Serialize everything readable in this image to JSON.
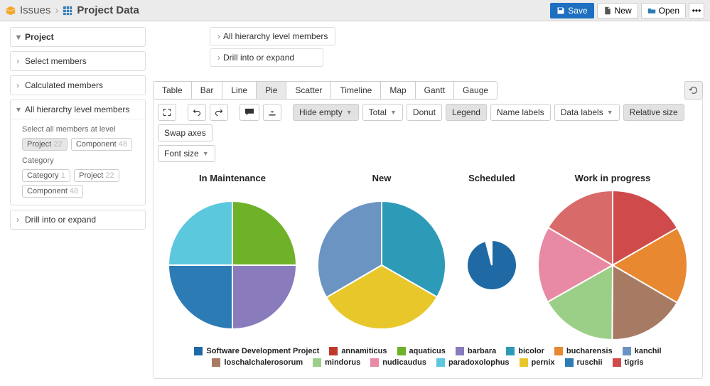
{
  "header": {
    "crumb_root": "Issues",
    "crumb_title": "Project Data",
    "save": "Save",
    "new": "New",
    "open": "Open"
  },
  "sidebar": {
    "project": "Project",
    "select_members": "Select members",
    "calc_members": "Calculated members",
    "all_hier": "All hierarchy level members",
    "select_all_at_level": "Select all members at level",
    "category": "Category",
    "drill": "Drill into or expand",
    "chips": {
      "project": {
        "label": "Project",
        "count": "22"
      },
      "component": {
        "label": "Component",
        "count": "48"
      },
      "category": {
        "label": "Category",
        "count": "1"
      },
      "project2": {
        "label": "Project",
        "count": "22"
      },
      "component2": {
        "label": "Component",
        "count": "48"
      }
    }
  },
  "midtop": {
    "all_hier": "All hierarchy level members",
    "drill": "Drill into or expand"
  },
  "tabs": [
    "Table",
    "Bar",
    "Line",
    "Pie",
    "Scatter",
    "Timeline",
    "Map",
    "Gantt",
    "Gauge"
  ],
  "active_tab": "Pie",
  "toolbar": {
    "hide_empty": "Hide empty",
    "total": "Total",
    "donut": "Donut",
    "legend": "Legend",
    "name_labels": "Name labels",
    "data_labels": "Data labels",
    "relative_size": "Relative size",
    "swap_axes": "Swap axes",
    "font_size": "Font size"
  },
  "charts": {
    "background_color": "#ffffff",
    "stroke": "#ffffff",
    "stroke_width": 2,
    "pies": [
      {
        "title": "In Maintenance",
        "diameter": 180,
        "slices": [
          {
            "value": 25,
            "color": "#6fb22a"
          },
          {
            "value": 25,
            "color": "#8a7bbd"
          },
          {
            "value": 25,
            "color": "#2d7bb5"
          },
          {
            "value": 25,
            "color": "#5cc8de"
          }
        ]
      },
      {
        "title": "New",
        "diameter": 180,
        "slices": [
          {
            "value": 33.3,
            "color": "#2d9bb8"
          },
          {
            "value": 33.3,
            "color": "#e8c72b"
          },
          {
            "value": 33.4,
            "color": "#6b94c2"
          }
        ]
      },
      {
        "title": "Scheduled",
        "diameter": 70,
        "slices": [
          {
            "value": 96,
            "color": "#1f69a4"
          },
          {
            "value": 4,
            "color": "#ffffff"
          }
        ]
      },
      {
        "title": "Work in progress",
        "diameter": 210,
        "slices": [
          {
            "value": 16.7,
            "color": "#cf4b4b"
          },
          {
            "value": 16.7,
            "color": "#e88830"
          },
          {
            "value": 16.7,
            "color": "#a77a63"
          },
          {
            "value": 16.7,
            "color": "#9bcf88"
          },
          {
            "value": 16.6,
            "color": "#e88aa3"
          },
          {
            "value": 16.6,
            "color": "#d96a6a"
          }
        ]
      }
    ]
  },
  "legend": [
    {
      "label": "Software Development Project",
      "color": "#1f69a4"
    },
    {
      "label": "annamiticus",
      "color": "#c0392b"
    },
    {
      "label": "aquaticus",
      "color": "#6fb22a"
    },
    {
      "label": "barbara",
      "color": "#8a7bbd"
    },
    {
      "label": "bicolor",
      "color": "#2d9bb8"
    },
    {
      "label": "bucharensis",
      "color": "#e88830"
    },
    {
      "label": "kanchil",
      "color": "#6b94c2"
    },
    {
      "label": "loschalchalerosorum",
      "color": "#a77a63"
    },
    {
      "label": "mindorus",
      "color": "#9bcf88"
    },
    {
      "label": "nudicaudus",
      "color": "#e88aa3"
    },
    {
      "label": "paradoxolophus",
      "color": "#5cc8de"
    },
    {
      "label": "pernix",
      "color": "#e8c72b"
    },
    {
      "label": "ruschii",
      "color": "#2d7bb5"
    },
    {
      "label": "tigris",
      "color": "#cf4b4b"
    }
  ]
}
